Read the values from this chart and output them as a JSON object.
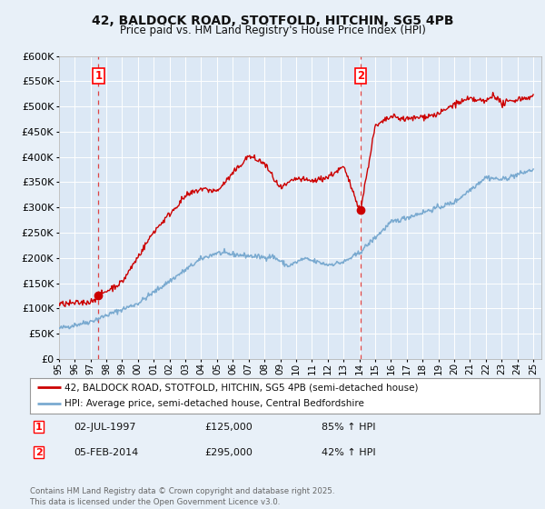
{
  "title": "42, BALDOCK ROAD, STOTFOLD, HITCHIN, SG5 4PB",
  "subtitle": "Price paid vs. HM Land Registry's House Price Index (HPI)",
  "background_color": "#e8f0f8",
  "plot_bg_color": "#dce8f5",
  "grid_color": "#ffffff",
  "ylim": [
    0,
    600000
  ],
  "yticks": [
    0,
    50000,
    100000,
    150000,
    200000,
    250000,
    300000,
    350000,
    400000,
    450000,
    500000,
    550000,
    600000
  ],
  "xlim_start": 1995.0,
  "xlim_end": 2025.5,
  "transaction1_date": 1997.5,
  "transaction1_price": 125000,
  "transaction1_label": "1",
  "transaction2_date": 2014.08,
  "transaction2_price": 295000,
  "transaction2_label": "2",
  "red_line_color": "#cc0000",
  "blue_line_color": "#7aaad0",
  "dashed_line_color": "#dd4444",
  "marker_color": "#cc0000",
  "legend_line1": "42, BALDOCK ROAD, STOTFOLD, HITCHIN, SG5 4PB (semi-detached house)",
  "legend_line2": "HPI: Average price, semi-detached house, Central Bedfordshire",
  "annot1_date": "02-JUL-1997",
  "annot1_price": "£125,000",
  "annot1_hpi": "85% ↑ HPI",
  "annot2_date": "05-FEB-2014",
  "annot2_price": "£295,000",
  "annot2_hpi": "42% ↑ HPI",
  "footer": "Contains HM Land Registry data © Crown copyright and database right 2025.\nThis data is licensed under the Open Government Licence v3.0.",
  "xtick_years": [
    1995,
    1996,
    1997,
    1998,
    1999,
    2000,
    2001,
    2002,
    2003,
    2004,
    2005,
    2006,
    2007,
    2008,
    2009,
    2010,
    2011,
    2012,
    2013,
    2014,
    2015,
    2016,
    2017,
    2018,
    2019,
    2020,
    2021,
    2022,
    2023,
    2024,
    2025
  ]
}
